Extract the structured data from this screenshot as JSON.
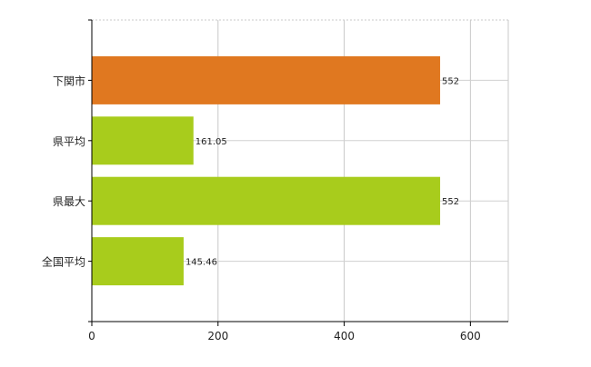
{
  "chart_data": {
    "type": "bar",
    "orientation": "horizontal",
    "categories": [
      "下関市",
      "県平均",
      "県最大",
      "全国平均"
    ],
    "values": [
      552,
      161.05,
      552,
      145.46
    ],
    "value_labels": [
      "552",
      "161.05",
      "552",
      "145.46"
    ],
    "bar_colors": [
      "#e07820",
      "#a8cc1c",
      "#a8cc1c",
      "#a8cc1c"
    ],
    "xlim": [
      0,
      660
    ],
    "xticks": [
      0,
      200,
      400,
      600
    ],
    "grid": true,
    "legend": "none"
  }
}
